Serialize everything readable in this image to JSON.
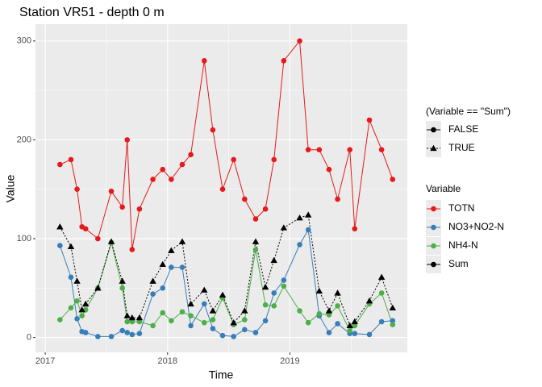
{
  "chart_data": {
    "type": "line",
    "title": "Station VR51 - depth 0 m",
    "xlabel": "Time",
    "ylabel": "Value",
    "x": [
      2017.12,
      2017.21,
      2017.26,
      2017.3,
      2017.33,
      2017.43,
      2017.54,
      2017.63,
      2017.67,
      2017.71,
      2017.77,
      2017.88,
      2017.96,
      2018.03,
      2018.12,
      2018.19,
      2018.3,
      2018.37,
      2018.45,
      2018.54,
      2018.63,
      2018.72,
      2018.8,
      2018.87,
      2018.95,
      2019.08,
      2019.15,
      2019.24,
      2019.32,
      2019.39,
      2019.49,
      2019.53,
      2019.65,
      2019.75,
      2019.84
    ],
    "series": [
      {
        "name": "TOTN",
        "color": "#E41A1C",
        "linetype": "solid",
        "shape": "circle",
        "values": [
          175,
          180,
          150,
          112,
          110,
          100,
          148,
          132,
          200,
          89,
          130,
          160,
          170,
          160,
          175,
          185,
          280,
          210,
          150,
          180,
          140,
          120,
          130,
          180,
          280,
          300,
          190,
          190,
          170,
          140,
          190,
          110,
          220,
          190,
          160
        ]
      },
      {
        "name": "NO3+NO2-N",
        "color": "#377EB8",
        "linetype": "solid",
        "shape": "circle",
        "values": [
          93,
          61,
          19,
          6,
          5,
          1,
          1,
          7,
          5,
          3,
          4,
          44,
          50,
          71,
          71,
          12,
          34,
          9,
          2,
          1,
          8,
          5,
          17,
          45,
          58,
          94,
          109,
          22,
          5,
          14,
          4,
          4,
          3,
          16,
          17
        ]
      },
      {
        "name": "NH4-N",
        "color": "#4DAF4A",
        "linetype": "solid",
        "shape": "circle",
        "values": [
          18,
          30,
          37,
          22,
          28,
          50,
          96,
          50,
          16,
          16,
          16,
          12,
          25,
          17,
          26,
          22,
          15,
          18,
          40,
          13,
          18,
          89,
          33,
          32,
          52,
          27,
          15,
          24,
          23,
          32,
          7,
          12,
          34,
          45,
          13
        ]
      },
      {
        "name": "Sum",
        "color": "#000000",
        "linetype": "dotted",
        "shape": "triangle",
        "values": [
          112,
          92,
          57,
          28,
          34,
          50,
          97,
          57,
          22,
          20,
          20,
          57,
          74,
          88,
          97,
          34,
          48,
          27,
          43,
          15,
          27,
          97,
          51,
          78,
          111,
          121,
          124,
          47,
          27,
          45,
          12,
          16,
          37,
          61,
          30
        ]
      }
    ],
    "xlim": [
      2016.92,
      2019.96
    ],
    "ylim": [
      -15,
      317
    ],
    "xticks": [
      2017,
      2018,
      2019
    ],
    "yticks": [
      0,
      100,
      200,
      300
    ],
    "x_minor_ticks": [
      2017.5,
      2018.5,
      2019.5
    ],
    "y_minor_ticks": [
      50,
      150,
      250
    ],
    "grid": true,
    "linetype_legend": {
      "title": "(Variable == \"Sum\")",
      "entries": [
        {
          "label": "FALSE",
          "linetype": "solid",
          "shape": "circle"
        },
        {
          "label": "TRUE",
          "linetype": "dotted",
          "shape": "triangle"
        }
      ]
    },
    "legend_title": "Variable"
  }
}
